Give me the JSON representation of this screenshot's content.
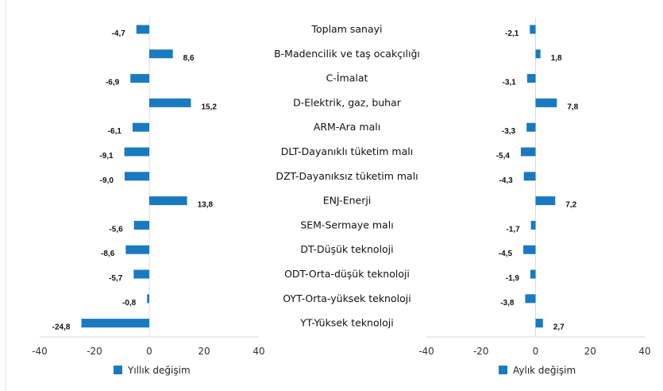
{
  "chart_data": [
    {
      "type": "bar",
      "orientation": "horizontal",
      "categories": [
        "Toplam sanayi",
        "B-Madencilik ve taş ocakçılığı",
        "C-İmalat",
        "D-Elektrik, gaz, buhar",
        "ARM-Ara malı",
        "DLT-Dayanıklı tüketim malı",
        "DZT-Dayanıksız tüketim malı",
        "ENJ-Enerji",
        "SEM-Sermaye malı",
        "DT-Düşük teknoloji",
        "ODT-Orta-düşük teknoloji",
        "OYT-Orta-yüksek teknoloji",
        "YT-Yüksek teknoloji"
      ],
      "series": [
        {
          "name": "Yıllık değişim",
          "values": [
            -4.7,
            8.6,
            -6.9,
            15.2,
            -6.1,
            -9.1,
            -9.0,
            13.8,
            -5.6,
            -8.6,
            -5.7,
            -0.8,
            -24.8
          ]
        }
      ],
      "value_labels": [
        "-4,7",
        "8,6",
        "-6,9",
        "15,2",
        "-6,1",
        "-9,1",
        "-9,0",
        "13,8",
        "-5,6",
        "-8,6",
        "-5,7",
        "-0,8",
        "-24,8"
      ],
      "xlim": [
        -40,
        40
      ],
      "xticks": [
        "-40",
        "-20",
        "0",
        "20",
        "40"
      ],
      "legend": "bottom",
      "color": "#1a7abf"
    },
    {
      "type": "bar",
      "orientation": "horizontal",
      "categories": [
        "Toplam sanayi",
        "B-Madencilik ve taş ocakçılığı",
        "C-İmalat",
        "D-Elektrik, gaz, buhar",
        "ARM-Ara malı",
        "DLT-Dayanıklı tüketim malı",
        "DZT-Dayanıksız tüketim malı",
        "ENJ-Enerji",
        "SEM-Sermaye malı",
        "DT-Düşük teknoloji",
        "ODT-Orta-düşük teknoloji",
        "OYT-Orta-yüksek teknoloji",
        "YT-Yüksek teknoloji"
      ],
      "series": [
        {
          "name": "Aylık değişim",
          "values": [
            -2.1,
            1.8,
            -3.1,
            7.8,
            -3.3,
            -5.4,
            -4.3,
            7.2,
            -1.7,
            -4.5,
            -1.9,
            -3.8,
            2.7
          ]
        }
      ],
      "value_labels": [
        "-2,1",
        "1,8",
        "-3,1",
        "7,8",
        "-3,3",
        "-5,4",
        "-4,3",
        "7,2",
        "-1,7",
        "-4,5",
        "-1,9",
        "-3,8",
        "2,7"
      ],
      "xlim": [
        -40,
        40
      ],
      "xticks": [
        "-40",
        "-20",
        "0",
        "20",
        "40"
      ],
      "legend": "bottom",
      "color": "#1a7abf"
    }
  ]
}
